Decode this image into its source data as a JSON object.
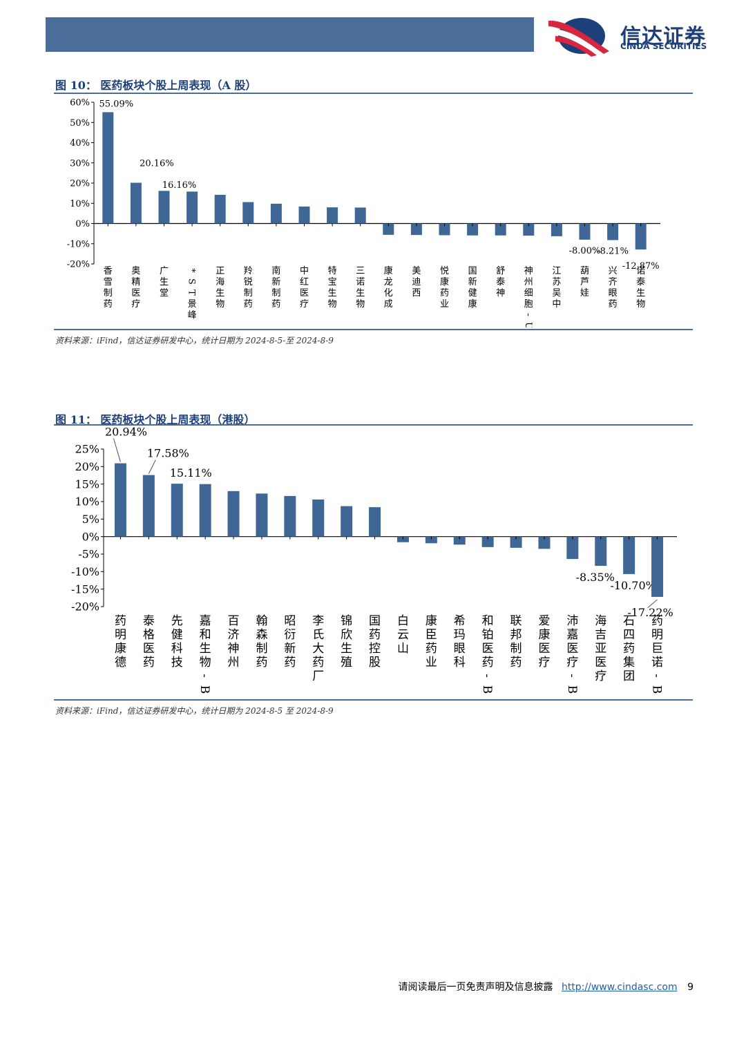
{
  "brand": {
    "name_cn": "信达证券",
    "name_en": "CINDA SECURITIES",
    "colors": {
      "primary": "#4a6e99",
      "logo_red": "#d7263d",
      "logo_blue": "#1d3f7a"
    }
  },
  "figures": [
    {
      "title": "图 10：  医药板块个股上周表现（A 股）",
      "source": "资料来源：iFind，信达证券研发中心，统计日期为 2024-8-5-至 2024-8-9"
    },
    {
      "title": "图 11：  医药板块个股上周表现（港股）",
      "source": "资料来源：iFind，信达证券研发中心，统计日期为 2024-8-5 至 2024-8-9"
    }
  ],
  "chart_data": [
    {
      "type": "bar",
      "categories": [
        "香雪制药",
        "奥精医疗",
        "广生堂",
        "*ST景峰",
        "正海生物",
        "羚锐制药",
        "南新制药",
        "中红医疗",
        "特宝生物",
        "三诺生物",
        "康龙化成",
        "美迪西",
        "悦康药业",
        "国新健康",
        "舒泰神",
        "神州细胞-U",
        "江苏吴中",
        "葫芦娃",
        "兴齐眼药",
        "诺泰生物"
      ],
      "values": [
        55.09,
        20.16,
        16.16,
        15.8,
        14.2,
        10.6,
        9.8,
        8.4,
        8.0,
        7.9,
        -5.6,
        -5.7,
        -5.8,
        -5.9,
        -5.9,
        -6.0,
        -6.3,
        -8.0,
        -8.21,
        -12.87
      ],
      "data_labels": {
        "0": "55.09%",
        "1": "20.16%",
        "2": "16.16%",
        "17": "-8.00%",
        "18": "-8.21%",
        "19": "-12.87%"
      },
      "ylim": [
        -20,
        60
      ],
      "yticks": [
        "60%",
        "50%",
        "40%",
        "30%",
        "20%",
        "10%",
        "0%",
        "-10%",
        "-20%"
      ],
      "bar_color": "#3f6796"
    },
    {
      "type": "bar",
      "categories": [
        "药明康德",
        "泰格医药",
        "先健科技",
        "嘉和生物-B",
        "百济神州",
        "翰森制药",
        "昭衍新药",
        "李氏大药厂",
        "锦欣生殖",
        "国药控股",
        "白云山",
        "康臣药业",
        "希玛眼科",
        "和铂医药-B",
        "联邦制药",
        "爱康医疗",
        "沛嘉医疗-B",
        "海吉亚医疗",
        "石四药集团",
        "药明巨诺-B"
      ],
      "values": [
        20.94,
        17.58,
        15.11,
        15.0,
        13.0,
        12.3,
        11.6,
        10.6,
        8.7,
        8.4,
        -1.6,
        -1.9,
        -2.3,
        -3.0,
        -3.2,
        -3.5,
        -6.4,
        -8.35,
        -10.7,
        -17.22
      ],
      "data_labels": {
        "0": "20.94%",
        "1": "17.58%",
        "2": "15.11%",
        "17": "-8.35%",
        "18": "-10.70%",
        "19": "-17.22%"
      },
      "ylim": [
        -20,
        25
      ],
      "yticks": [
        "25%",
        "20%",
        "15%",
        "10%",
        "5%",
        "0%",
        "-5%",
        "-10%",
        "-15%",
        "-20%"
      ],
      "bar_color": "#3f6796"
    }
  ],
  "footer": {
    "disclaimer": "请阅读最后一页免责声明及信息披露",
    "url": "http://www.cindasc.com",
    "page": "9"
  }
}
